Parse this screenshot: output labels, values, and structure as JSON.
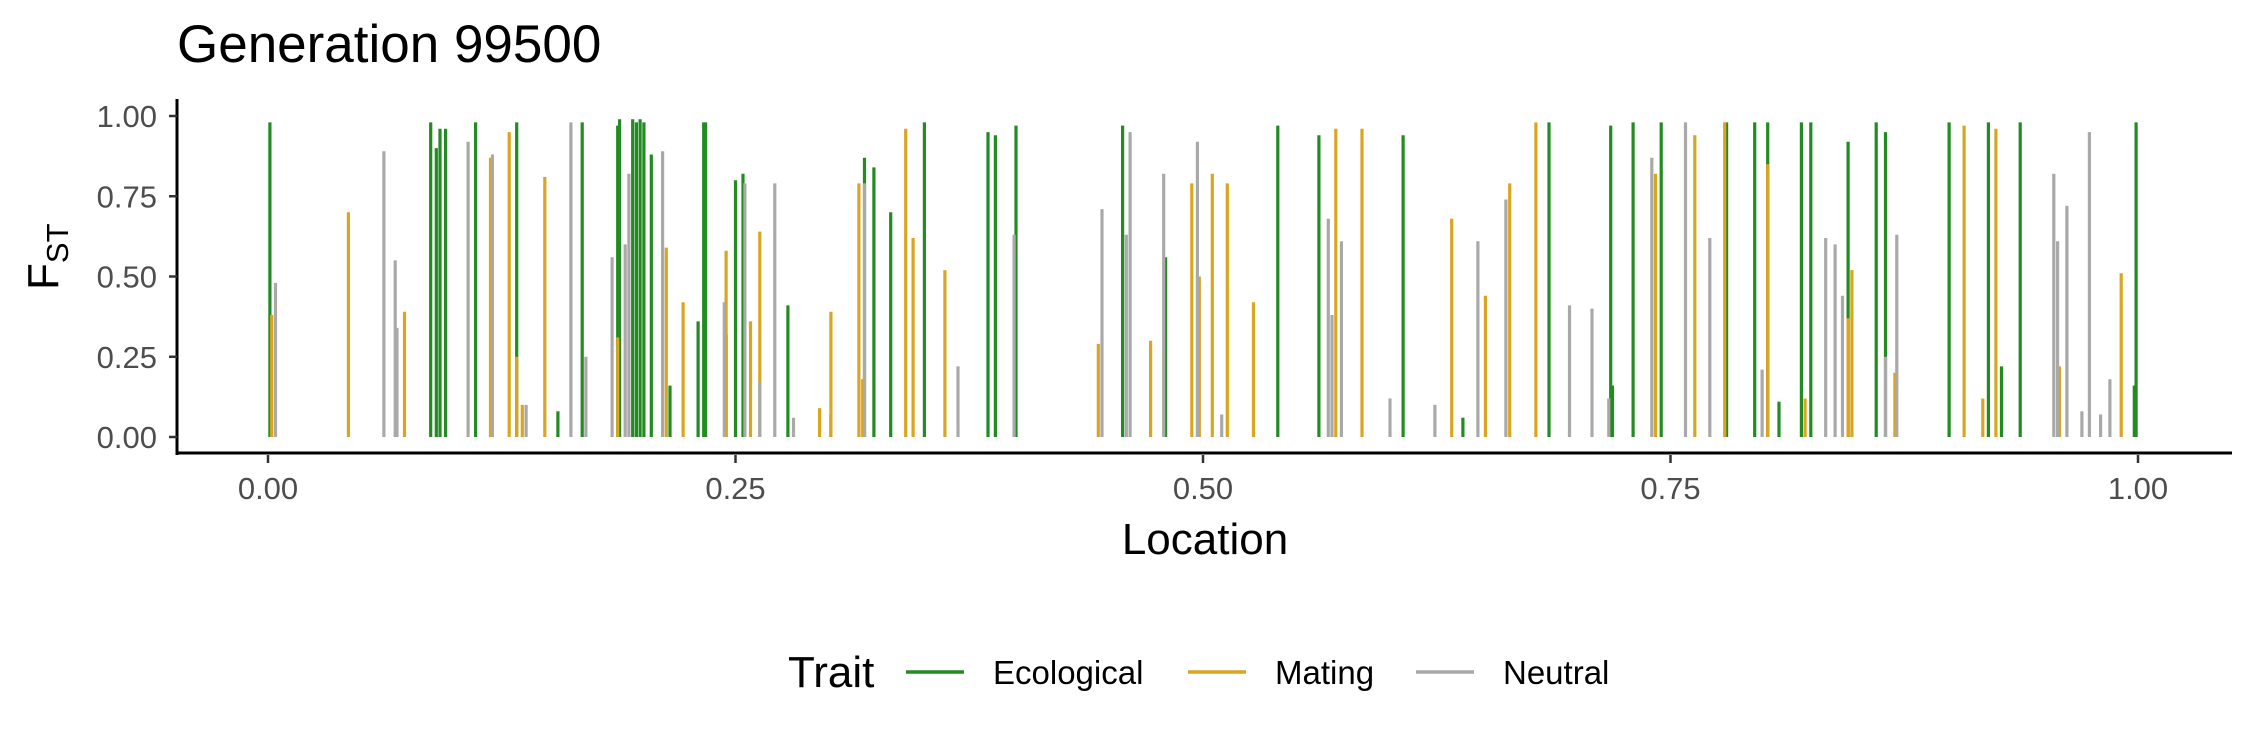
{
  "chart_data": {
    "type": "bar",
    "title": "Generation 99500",
    "xlabel": "Location",
    "ylabel_main": "F",
    "ylabel_sub": "ST",
    "xlim": [
      0,
      1
    ],
    "ylim": [
      0,
      1
    ],
    "x_ticks": [
      "0.00",
      "0.25",
      "0.50",
      "0.75",
      "1.00"
    ],
    "y_ticks": [
      "0.00",
      "0.25",
      "0.50",
      "0.75",
      "1.00"
    ],
    "grid": false,
    "legend": {
      "title": "Trait",
      "placement": "bottom",
      "entries": [
        "Ecological",
        "Mating",
        "Neutral"
      ]
    },
    "colors": {
      "Ecological": "#228b22",
      "Mating": "#daa520",
      "Neutral": "#a9a9a9"
    },
    "series": [
      {
        "name": "Ecological",
        "x": [
          0.001,
          0.087,
          0.09,
          0.092,
          0.095,
          0.111,
          0.133,
          0.155,
          0.168,
          0.187,
          0.188,
          0.195,
          0.197,
          0.199,
          0.201,
          0.205,
          0.215,
          0.23,
          0.233,
          0.234,
          0.245,
          0.25,
          0.254,
          0.278,
          0.301,
          0.319,
          0.324,
          0.333,
          0.351,
          0.385,
          0.389,
          0.4,
          0.457,
          0.48,
          0.54,
          0.562,
          0.607,
          0.639,
          0.685,
          0.718,
          0.719,
          0.73,
          0.745,
          0.78,
          0.795,
          0.802,
          0.808,
          0.82,
          0.825,
          0.845,
          0.86,
          0.865,
          0.899,
          0.92,
          0.927,
          0.937,
          0.998,
          0.999
        ],
        "values": [
          0.98,
          0.98,
          0.9,
          0.96,
          0.96,
          0.98,
          0.98,
          0.08,
          0.98,
          0.97,
          0.99,
          0.99,
          0.98,
          0.99,
          0.98,
          0.88,
          0.16,
          0.36,
          0.98,
          0.98,
          0.32,
          0.8,
          0.82,
          0.41,
          0.07,
          0.87,
          0.84,
          0.7,
          0.98,
          0.95,
          0.94,
          0.97,
          0.97,
          0.56,
          0.97,
          0.94,
          0.94,
          0.06,
          0.98,
          0.97,
          0.16,
          0.98,
          0.98,
          0.98,
          0.98,
          0.98,
          0.11,
          0.98,
          0.98,
          0.92,
          0.98,
          0.95,
          0.98,
          0.98,
          0.22,
          0.98,
          0.16,
          0.98
        ]
      },
      {
        "name": "Mating",
        "x": [
          0.002,
          0.043,
          0.073,
          0.119,
          0.129,
          0.133,
          0.136,
          0.148,
          0.187,
          0.213,
          0.222,
          0.245,
          0.258,
          0.263,
          0.295,
          0.301,
          0.316,
          0.318,
          0.341,
          0.345,
          0.362,
          0.444,
          0.472,
          0.494,
          0.498,
          0.505,
          0.513,
          0.527,
          0.571,
          0.585,
          0.633,
          0.651,
          0.664,
          0.678,
          0.742,
          0.763,
          0.779,
          0.802,
          0.822,
          0.845,
          0.847,
          0.87,
          0.907,
          0.917,
          0.924,
          0.958,
          0.991
        ],
        "values": [
          0.38,
          0.7,
          0.39,
          0.87,
          0.95,
          0.25,
          0.1,
          0.81,
          0.31,
          0.59,
          0.42,
          0.58,
          0.36,
          0.64,
          0.09,
          0.39,
          0.79,
          0.18,
          0.96,
          0.62,
          0.52,
          0.29,
          0.3,
          0.79,
          0.5,
          0.82,
          0.79,
          0.42,
          0.96,
          0.96,
          0.68,
          0.44,
          0.79,
          0.98,
          0.82,
          0.94,
          0.98,
          0.85,
          0.12,
          0.37,
          0.52,
          0.2,
          0.97,
          0.12,
          0.96,
          0.22,
          0.51
        ]
      },
      {
        "name": "Neutral",
        "x": [
          0.004,
          0.062,
          0.068,
          0.069,
          0.107,
          0.12,
          0.138,
          0.162,
          0.17,
          0.184,
          0.191,
          0.193,
          0.211,
          0.244,
          0.255,
          0.263,
          0.271,
          0.281,
          0.319,
          0.369,
          0.399,
          0.446,
          0.459,
          0.461,
          0.479,
          0.497,
          0.51,
          0.567,
          0.569,
          0.574,
          0.6,
          0.624,
          0.647,
          0.662,
          0.696,
          0.708,
          0.717,
          0.74,
          0.758,
          0.771,
          0.799,
          0.833,
          0.838,
          0.842,
          0.865,
          0.871,
          0.955,
          0.957,
          0.962,
          0.97,
          0.974,
          0.98,
          0.985
        ],
        "values": [
          0.48,
          0.89,
          0.55,
          0.34,
          0.92,
          0.88,
          0.1,
          0.98,
          0.25,
          0.56,
          0.6,
          0.82,
          0.89,
          0.42,
          0.79,
          0.17,
          0.79,
          0.06,
          0.79,
          0.22,
          0.63,
          0.71,
          0.63,
          0.95,
          0.82,
          0.92,
          0.07,
          0.68,
          0.38,
          0.61,
          0.12,
          0.1,
          0.61,
          0.74,
          0.41,
          0.4,
          0.12,
          0.87,
          0.98,
          0.62,
          0.21,
          0.62,
          0.6,
          0.44,
          0.25,
          0.63,
          0.82,
          0.61,
          0.72,
          0.08,
          0.95,
          0.07,
          0.18
        ]
      }
    ]
  }
}
